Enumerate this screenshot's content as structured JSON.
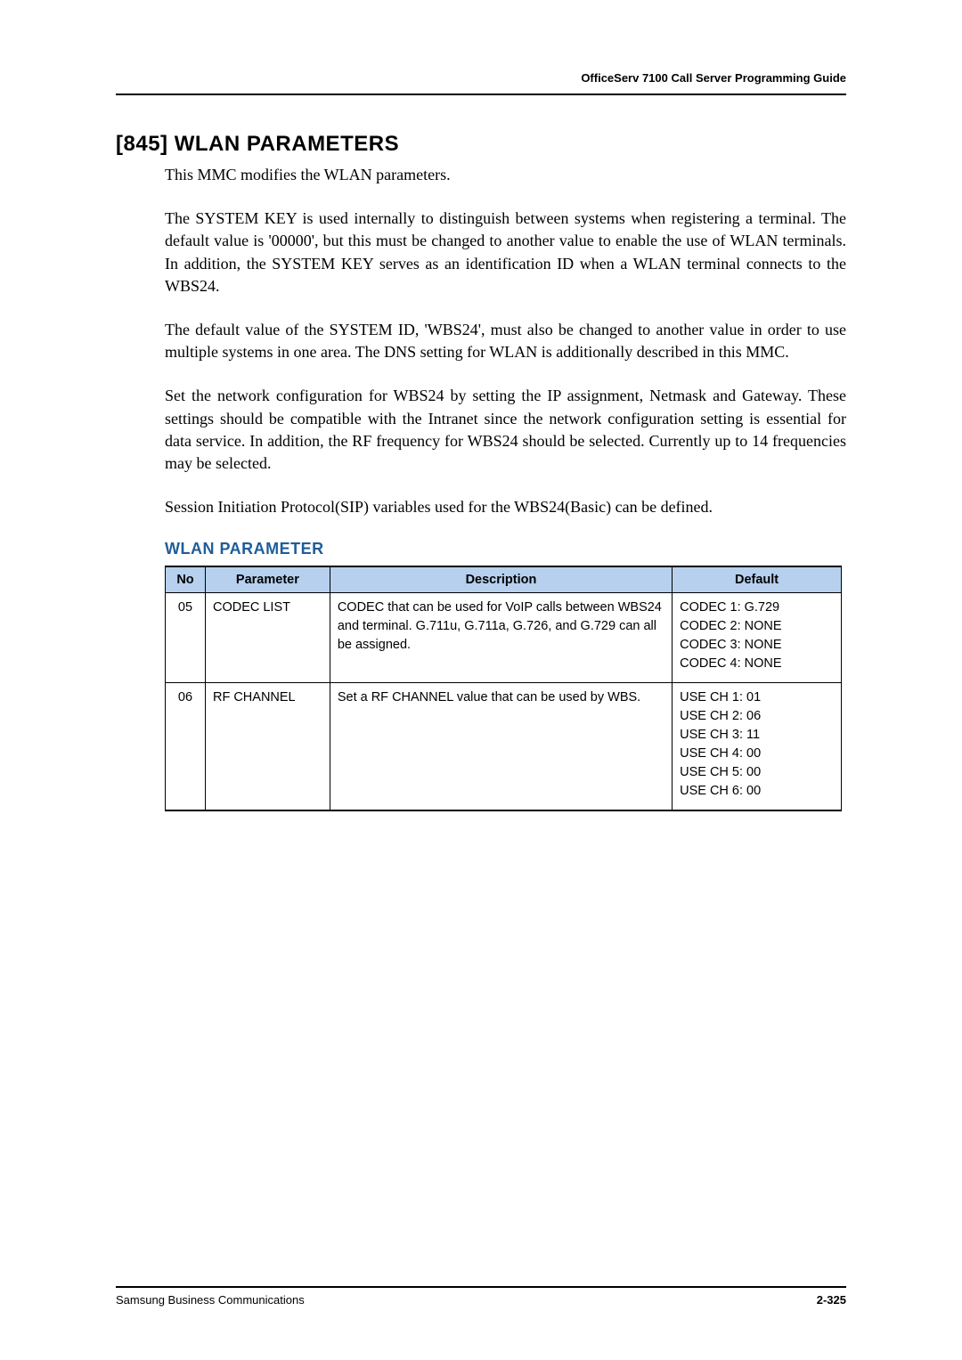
{
  "header": {
    "doc_title": "OfficeServ 7100 Call Server Programming Guide"
  },
  "section": {
    "title": "[845] WLAN PARAMETERS",
    "paragraphs": {
      "p1": "This MMC modifies the WLAN parameters.",
      "p2": "The SYSTEM KEY is used internally to distinguish between systems when registering a terminal. The default value is '00000', but this must be changed to another value to enable the use of WLAN terminals. In addition, the SYSTEM KEY serves as an identification ID when a WLAN terminal connects to the WBS24.",
      "p3": "The default value of the SYSTEM ID, 'WBS24', must also be changed to another value in order to use multiple systems in one area. The DNS setting for WLAN is additionally described in this MMC.",
      "p4": "Set the network configuration for WBS24 by setting the IP assignment, Netmask and Gateway. These settings should be compatible with the Intranet since the network configuration setting is essential for data service. In addition, the RF frequency for WBS24 should be selected. Currently up to 14 frequencies may be selected.",
      "p5": "Session Initiation Protocol(SIP) variables used for the WBS24(Basic) can be defined."
    }
  },
  "table": {
    "heading": "WLAN PARAMETER",
    "heading_color": "#1f5d99",
    "header_bg": "#b6d0ee",
    "columns": {
      "no": "No",
      "parameter": "Parameter",
      "description": "Description",
      "default": "Default"
    },
    "rows": {
      "r1": {
        "no": "05",
        "parameter": "CODEC LIST",
        "description": "CODEC that can be used for VoIP calls between WBS24 and terminal. G.711u, G.711a, G.726, and G.729 can all be assigned.",
        "defaults": {
          "d1": "CODEC 1: G.729",
          "d2": "CODEC 2: NONE",
          "d3": "CODEC 3: NONE",
          "d4": "CODEC 4: NONE"
        }
      },
      "r2": {
        "no": "06",
        "parameter": "RF CHANNEL",
        "description": "Set a RF CHANNEL value that can be used by WBS.",
        "defaults": {
          "d1": "USE CH 1: 01",
          "d2": "USE CH 2: 06",
          "d3": "USE CH 3: 11",
          "d4": "USE CH 4: 00",
          "d5": "USE CH 5: 00",
          "d6": "USE CH 6: 00"
        }
      }
    }
  },
  "footer": {
    "left": "Samsung Business Communications",
    "right": "2-325"
  }
}
